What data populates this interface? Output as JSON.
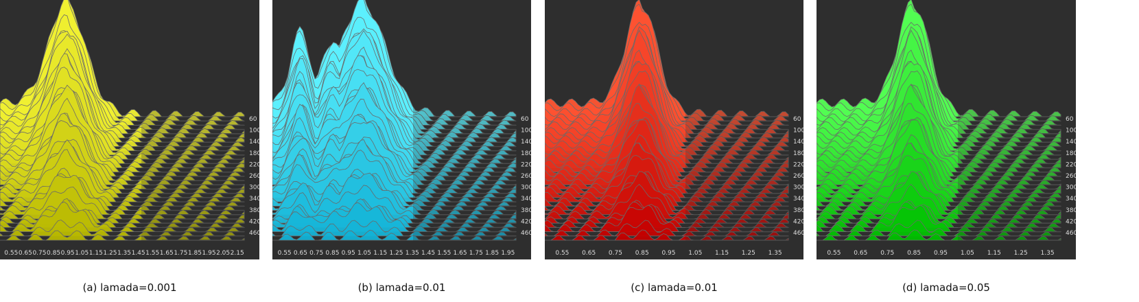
{
  "panels": [
    {
      "caption": "(a) lamada=0.001",
      "color": "#f2f233",
      "dark": "#b8b800",
      "x_ticks": [
        "0.55",
        "0.65",
        "0.75",
        "0.85",
        "0.95",
        "1.05",
        "1.15",
        "1.25",
        "1.35",
        "1.45",
        "1.55",
        "1.65",
        "1.75",
        "1.85",
        "1.95",
        "2.05",
        "2.15"
      ],
      "y_ticks": [
        "60",
        "100",
        "140",
        "180",
        "220",
        "260",
        "300",
        "340",
        "380",
        "420",
        "460"
      ],
      "peak_tick": 4,
      "tick_side": "right",
      "spread": "wide"
    },
    {
      "caption": "(b) lamada=0.01",
      "color": "#5ff2ff",
      "dark": "#12b2d6",
      "x_ticks": [
        "0.55",
        "0.65",
        "0.75",
        "0.85",
        "0.95",
        "1.05",
        "1.15",
        "1.25",
        "1.35",
        "1.45",
        "1.55",
        "1.65",
        "1.75",
        "1.85",
        "1.95"
      ],
      "y_ticks": [
        "60",
        "100",
        "140",
        "180",
        "220",
        "260",
        "300",
        "340",
        "380",
        "420",
        "460"
      ],
      "peak_tick": 5,
      "tick_side": "right",
      "spread": "multi"
    },
    {
      "caption": "(c) lamada=0.01",
      "color": "#ff5533",
      "dark": "#c40000",
      "x_ticks": [
        "0.55",
        "0.65",
        "0.75",
        "0.85",
        "0.95",
        "1.05",
        "1.15",
        "1.25",
        "1.35"
      ],
      "y_ticks": [
        "60",
        "100",
        "140",
        "180",
        "220",
        "260",
        "300",
        "340",
        "380",
        "420",
        "460"
      ],
      "peak_tick": 3,
      "tick_side": "right",
      "spread": "narrow"
    },
    {
      "caption": "(d) lamada=0.05",
      "color": "#55ff55",
      "dark": "#00c000",
      "x_ticks": [
        "0.55",
        "0.65",
        "0.75",
        "0.85",
        "0.95",
        "1.05",
        "1.15",
        "1.25",
        "1.35"
      ],
      "y_ticks": [
        "60",
        "100",
        "140",
        "180",
        "220",
        "260",
        "300",
        "340",
        "380",
        "420",
        "460"
      ],
      "peak_tick": 3,
      "tick_side": "right",
      "spread": "narrow"
    }
  ],
  "chart_data": [
    {
      "type": "area",
      "title": "",
      "xlabel": "",
      "ylabel": "",
      "x_range": [
        0.55,
        2.15
      ],
      "y_range": [
        60,
        460
      ],
      "grid": false
    },
    {
      "type": "area",
      "title": "",
      "xlabel": "",
      "ylabel": "",
      "x_range": [
        0.55,
        1.95
      ],
      "y_range": [
        60,
        460
      ],
      "grid": false
    },
    {
      "type": "area",
      "title": "",
      "xlabel": "",
      "ylabel": "",
      "x_range": [
        0.55,
        1.35
      ],
      "y_range": [
        60,
        460
      ],
      "grid": false
    },
    {
      "type": "area",
      "title": "",
      "xlabel": "",
      "ylabel": "",
      "x_range": [
        0.55,
        1.35
      ],
      "y_range": [
        60,
        460
      ],
      "grid": false
    }
  ]
}
